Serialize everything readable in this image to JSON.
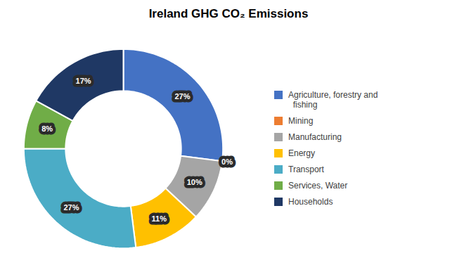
{
  "chart_data": {
    "type": "pie",
    "title": "Ireland GHG CO₂ Emissions",
    "categories": [
      "Agriculture, forestry and\n  fishing",
      "Mining",
      "Manufacturing",
      "Energy",
      "Transport",
      "Services, Water",
      "Households"
    ],
    "values": [
      27,
      0,
      10,
      11,
      27,
      8,
      17
    ],
    "value_labels": [
      "27%",
      "0%",
      "10%",
      "11%",
      "27%",
      "8%",
      "17%"
    ],
    "colors": [
      "#4472C4",
      "#ED7D31",
      "#A5A5A5",
      "#FFC000",
      "#4BACC6",
      "#70AD47",
      "#1F3864"
    ],
    "data_labels": true,
    "legend": "right"
  }
}
